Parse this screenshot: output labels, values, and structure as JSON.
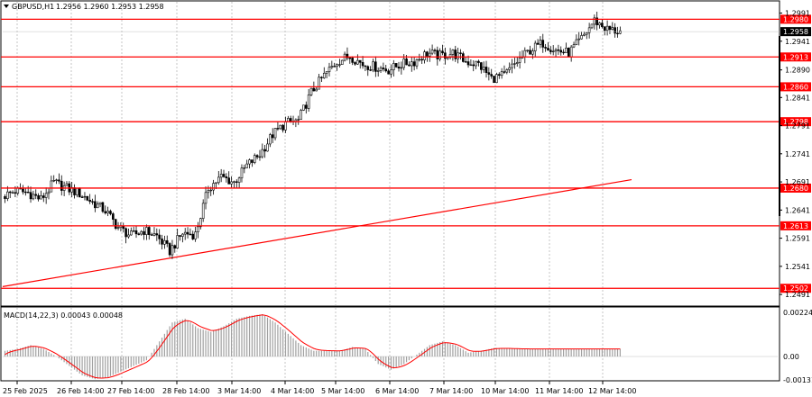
{
  "header": {
    "symbol_label": "GBPUSD,H1",
    "ohlc_text": "1.2956 1.2960 1.2953 1.2958"
  },
  "macd": {
    "label": "MACD(14,22,3) 0.00043 0.00048",
    "axis_ticks": [
      "0.00224",
      "0.00",
      "-0.00131"
    ]
  },
  "colors": {
    "level_line": "#ff0000",
    "level_label_bg": "#ff0000",
    "current_label_bg": "#000000",
    "candle": "#000000",
    "macd_hist": "#a0a0a0",
    "macd_signal": "#ff0000",
    "grid": "#a0a0a0"
  },
  "chart_data": {
    "type": "candlestick",
    "title": "GBPUSD,H1",
    "ylim": [
      1.2472,
      1.3011
    ],
    "y_ticks": [
      "1.2991",
      "1.2941",
      "1.2890",
      "1.2841",
      "1.2791",
      "1.2741",
      "1.2691",
      "1.2641",
      "1.2591",
      "1.2541",
      "1.2491"
    ],
    "x_ticks": [
      "25 Feb 2025",
      "26 Feb 14:00",
      "27 Feb 14:00",
      "28 Feb 14:00",
      "3 Mar 14:00",
      "4 Mar 14:00",
      "5 Mar 14:00",
      "6 Mar 14:00",
      "7 Mar 14:00",
      "10 Mar 14:00",
      "11 Mar 14:00",
      "12 Mar 14:00"
    ],
    "levels": [
      "1.2980",
      "1.2913",
      "1.2860",
      "1.2798",
      "1.2680",
      "1.2613",
      "1.2502"
    ],
    "current_price": "1.2958",
    "trendline": {
      "start": 1.2505,
      "end": 1.2695
    },
    "close_path": [
      [
        0,
        1.2665
      ],
      [
        5,
        1.2675
      ],
      [
        10,
        1.2672
      ],
      [
        15,
        1.266
      ],
      [
        20,
        1.269
      ],
      [
        25,
        1.268
      ],
      [
        30,
        1.267
      ],
      [
        35,
        1.2655
      ],
      [
        40,
        1.264
      ],
      [
        45,
        1.261
      ],
      [
        50,
        1.2595
      ],
      [
        55,
        1.2605
      ],
      [
        60,
        1.2595
      ],
      [
        65,
        1.2568
      ],
      [
        70,
        1.26
      ],
      [
        75,
        1.2598
      ],
      [
        80,
        1.268
      ],
      [
        85,
        1.27
      ],
      [
        90,
        1.269
      ],
      [
        95,
        1.272
      ],
      [
        100,
        1.274
      ],
      [
        105,
        1.2775
      ],
      [
        110,
        1.2795
      ],
      [
        115,
        1.28
      ],
      [
        120,
        1.285
      ],
      [
        125,
        1.288
      ],
      [
        130,
        1.2905
      ],
      [
        135,
        1.2915
      ],
      [
        140,
        1.29
      ],
      [
        145,
        1.2895
      ],
      [
        150,
        1.289
      ],
      [
        155,
        1.29
      ],
      [
        160,
        1.2905
      ],
      [
        165,
        1.292
      ],
      [
        170,
        1.2915
      ],
      [
        175,
        1.292
      ],
      [
        180,
        1.2905
      ],
      [
        185,
        1.29
      ],
      [
        190,
        1.2875
      ],
      [
        195,
        1.288
      ],
      [
        200,
        1.2905
      ],
      [
        205,
        1.2925
      ],
      [
        210,
        1.2938
      ],
      [
        215,
        1.2925
      ],
      [
        220,
        1.292
      ],
      [
        225,
        1.2945
      ],
      [
        230,
        1.2978
      ],
      [
        235,
        1.2962
      ],
      [
        240,
        1.2958
      ]
    ],
    "macd_hist_path": [
      [
        0,
        0.0003
      ],
      [
        5,
        0.0004
      ],
      [
        10,
        0.0006
      ],
      [
        15,
        0.0004
      ],
      [
        20,
        0.0
      ],
      [
        25,
        -0.0005
      ],
      [
        30,
        -0.001
      ],
      [
        35,
        -0.0012
      ],
      [
        40,
        -0.0011
      ],
      [
        45,
        -0.0008
      ],
      [
        50,
        -0.0005
      ],
      [
        55,
        -0.0002
      ],
      [
        60,
        0.0008
      ],
      [
        65,
        0.0018
      ],
      [
        70,
        0.002
      ],
      [
        75,
        0.0015
      ],
      [
        80,
        0.0013
      ],
      [
        85,
        0.0016
      ],
      [
        90,
        0.002
      ],
      [
        95,
        0.00215
      ],
      [
        100,
        0.00224
      ],
      [
        105,
        0.0018
      ],
      [
        110,
        0.0012
      ],
      [
        115,
        0.0006
      ],
      [
        120,
        0.0003
      ],
      [
        125,
        0.0003
      ],
      [
        130,
        0.0003
      ],
      [
        135,
        0.0005
      ],
      [
        140,
        0.0004
      ],
      [
        145,
        -0.0004
      ],
      [
        150,
        -0.0007
      ],
      [
        155,
        -0.0004
      ],
      [
        160,
        0.0001
      ],
      [
        165,
        0.0006
      ],
      [
        170,
        0.0008
      ],
      [
        175,
        0.0006
      ],
      [
        180,
        0.0002
      ],
      [
        185,
        0.0003
      ],
      [
        190,
        0.00045
      ],
      [
        195,
        0.00043
      ],
      [
        200,
        0.0004
      ]
    ]
  }
}
